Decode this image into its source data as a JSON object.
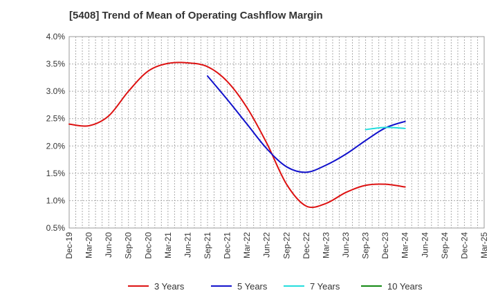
{
  "chart_data": {
    "type": "line",
    "title": "[5408]  Trend of Mean of Operating Cashflow Margin",
    "xlabel": "",
    "ylabel": "",
    "ylim": [
      0.5,
      4.0
    ],
    "y_ticks": [
      "0.5%",
      "1.0%",
      "1.5%",
      "2.0%",
      "2.5%",
      "3.0%",
      "3.5%",
      "4.0%"
    ],
    "y_tick_values": [
      0.5,
      1.0,
      1.5,
      2.0,
      2.5,
      3.0,
      3.5,
      4.0
    ],
    "x_ticks": [
      "Dec-19",
      "Mar-20",
      "Jun-20",
      "Sep-20",
      "Dec-20",
      "Mar-21",
      "Jun-21",
      "Sep-21",
      "Dec-21",
      "Mar-22",
      "Jun-22",
      "Sep-22",
      "Dec-22",
      "Mar-23",
      "Jun-23",
      "Sep-23",
      "Dec-23",
      "Mar-24",
      "Jun-24",
      "Sep-24",
      "Dec-24",
      "Mar-25"
    ],
    "grid": true,
    "legend_position": "bottom",
    "colors": {
      "3 Years": "#dd1111",
      "5 Years": "#1111cc",
      "7 Years": "#22dddd",
      "10 Years": "#118811"
    },
    "series": [
      {
        "name": "3 Years",
        "color": "#dd1111",
        "points": [
          [
            0,
            2.4
          ],
          [
            1,
            2.37
          ],
          [
            2,
            2.55
          ],
          [
            3,
            3.0
          ],
          [
            4,
            3.37
          ],
          [
            5,
            3.51
          ],
          [
            6,
            3.52
          ],
          [
            7,
            3.45
          ],
          [
            8,
            3.18
          ],
          [
            9,
            2.7
          ],
          [
            10,
            2.05
          ],
          [
            11,
            1.3
          ],
          [
            12,
            0.9
          ],
          [
            13,
            0.95
          ],
          [
            14,
            1.15
          ],
          [
            15,
            1.28
          ],
          [
            16,
            1.3
          ],
          [
            17,
            1.25
          ]
        ]
      },
      {
        "name": "5 Years",
        "color": "#1111cc",
        "points": [
          [
            7,
            3.28
          ],
          [
            8,
            2.85
          ],
          [
            9,
            2.4
          ],
          [
            10,
            1.95
          ],
          [
            11,
            1.62
          ],
          [
            12,
            1.52
          ],
          [
            13,
            1.65
          ],
          [
            14,
            1.85
          ],
          [
            15,
            2.1
          ],
          [
            16,
            2.33
          ],
          [
            17,
            2.45
          ]
        ]
      },
      {
        "name": "7 Years",
        "color": "#22dddd",
        "points": [
          [
            15,
            2.3
          ],
          [
            16,
            2.34
          ],
          [
            17,
            2.32
          ]
        ]
      },
      {
        "name": "10 Years",
        "color": "#118811",
        "points": []
      }
    ]
  }
}
